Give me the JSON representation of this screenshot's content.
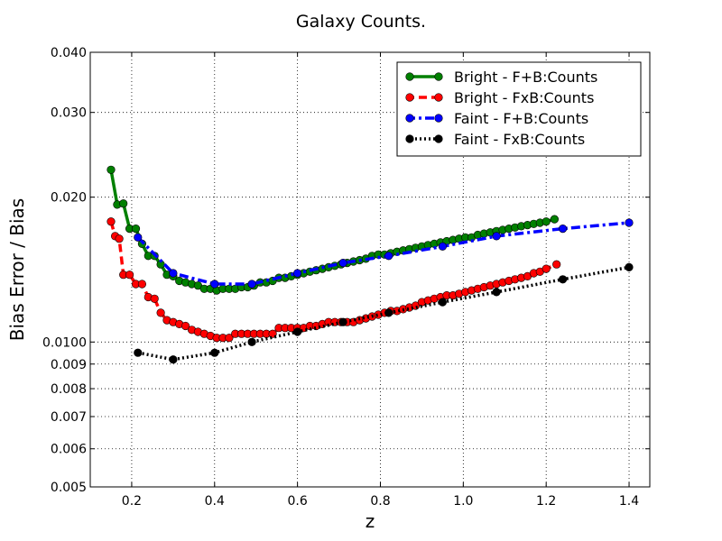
{
  "chart_data": {
    "type": "line",
    "title": "Galaxy Counts.",
    "xlabel": "z",
    "ylabel": "Bias Error / Bias",
    "xlim": [
      0.1,
      1.45
    ],
    "ylim": [
      0.005,
      0.04
    ],
    "yscale": "log",
    "grid": true,
    "legend_position": "top-right",
    "x_ticks": [
      0.2,
      0.4,
      0.6,
      0.8,
      1.0,
      1.2,
      1.4
    ],
    "x_tick_labels": [
      "0.2",
      "0.4",
      "0.6",
      "0.8",
      "1.0",
      "1.2",
      "1.4"
    ],
    "y_ticks": [
      0.005,
      0.006,
      0.007,
      0.008,
      0.009,
      0.01,
      0.02,
      0.03,
      0.04
    ],
    "y_tick_labels": [
      "0.005",
      "0.006",
      "0.007",
      "0.008",
      "0.009",
      "0.0100",
      "0.020",
      "0.030",
      "0.040"
    ],
    "series": [
      {
        "name": "Bright - F+B:Counts",
        "color": "#008000",
        "line_style": "solid",
        "x": [
          0.15,
          0.165,
          0.18,
          0.195,
          0.21,
          0.225,
          0.24,
          0.255,
          0.27,
          0.285,
          0.3,
          0.315,
          0.33,
          0.345,
          0.36,
          0.375,
          0.39,
          0.405,
          0.42,
          0.435,
          0.45,
          0.465,
          0.48,
          0.495,
          0.51,
          0.525,
          0.54,
          0.555,
          0.57,
          0.585,
          0.6,
          0.615,
          0.63,
          0.645,
          0.66,
          0.675,
          0.69,
          0.705,
          0.72,
          0.735,
          0.75,
          0.765,
          0.78,
          0.795,
          0.81,
          0.825,
          0.84,
          0.855,
          0.87,
          0.885,
          0.9,
          0.915,
          0.93,
          0.945,
          0.96,
          0.975,
          0.99,
          1.005,
          1.02,
          1.035,
          1.05,
          1.065,
          1.08,
          1.095,
          1.11,
          1.125,
          1.14,
          1.155,
          1.17,
          1.185,
          1.2,
          1.22
        ],
        "values": [
          0.0228,
          0.0193,
          0.0194,
          0.0172,
          0.0172,
          0.016,
          0.0151,
          0.0151,
          0.0145,
          0.0138,
          0.0137,
          0.0134,
          0.0133,
          0.0132,
          0.0131,
          0.0129,
          0.0129,
          0.0128,
          0.0129,
          0.0129,
          0.0129,
          0.013,
          0.013,
          0.0131,
          0.0133,
          0.0133,
          0.0134,
          0.0136,
          0.0136,
          0.0137,
          0.0138,
          0.0139,
          0.014,
          0.0141,
          0.0142,
          0.0143,
          0.0144,
          0.0145,
          0.0146,
          0.0147,
          0.0148,
          0.0149,
          0.0151,
          0.0152,
          0.0152,
          0.0153,
          0.0154,
          0.0155,
          0.0156,
          0.0157,
          0.0158,
          0.0159,
          0.016,
          0.0161,
          0.0162,
          0.0163,
          0.0164,
          0.0165,
          0.0165,
          0.0167,
          0.0168,
          0.0169,
          0.017,
          0.0171,
          0.0172,
          0.0173,
          0.0174,
          0.0175,
          0.0176,
          0.0177,
          0.0178,
          0.018
        ]
      },
      {
        "name": "Bright - FxB:Counts",
        "color": "#ff0000",
        "line_style": "dashed",
        "x": [
          0.15,
          0.16,
          0.17,
          0.18,
          0.195,
          0.21,
          0.225,
          0.24,
          0.255,
          0.27,
          0.285,
          0.3,
          0.315,
          0.33,
          0.345,
          0.36,
          0.375,
          0.39,
          0.405,
          0.42,
          0.435,
          0.45,
          0.465,
          0.48,
          0.495,
          0.51,
          0.525,
          0.54,
          0.555,
          0.57,
          0.585,
          0.6,
          0.615,
          0.63,
          0.645,
          0.66,
          0.675,
          0.69,
          0.705,
          0.72,
          0.735,
          0.75,
          0.765,
          0.78,
          0.795,
          0.81,
          0.825,
          0.84,
          0.855,
          0.87,
          0.885,
          0.9,
          0.915,
          0.93,
          0.945,
          0.96,
          0.975,
          0.99,
          1.005,
          1.02,
          1.035,
          1.05,
          1.065,
          1.08,
          1.095,
          1.11,
          1.125,
          1.14,
          1.155,
          1.17,
          1.185,
          1.2,
          1.225
        ],
        "values": [
          0.0178,
          0.0166,
          0.0164,
          0.0138,
          0.0138,
          0.0132,
          0.0132,
          0.0124,
          0.0123,
          0.0115,
          0.0111,
          0.011,
          0.0109,
          0.0108,
          0.0106,
          0.0105,
          0.0104,
          0.0103,
          0.0102,
          0.0102,
          0.0102,
          0.0104,
          0.0104,
          0.0104,
          0.0104,
          0.0104,
          0.0104,
          0.0104,
          0.0107,
          0.0107,
          0.0107,
          0.0107,
          0.0107,
          0.0108,
          0.0108,
          0.0109,
          0.011,
          0.011,
          0.011,
          0.011,
          0.011,
          0.0111,
          0.0112,
          0.0113,
          0.0114,
          0.0115,
          0.0116,
          0.0116,
          0.0117,
          0.0118,
          0.0119,
          0.0121,
          0.0122,
          0.0123,
          0.0124,
          0.0125,
          0.0125,
          0.0126,
          0.0127,
          0.0128,
          0.0129,
          0.013,
          0.0131,
          0.0132,
          0.0133,
          0.0134,
          0.0135,
          0.0136,
          0.0137,
          0.0139,
          0.014,
          0.0142,
          0.0145
        ]
      },
      {
        "name": "Faint - F+B:Counts",
        "color": "#0000ff",
        "line_style": "dashdot",
        "x": [
          0.215,
          0.3,
          0.4,
          0.49,
          0.6,
          0.71,
          0.82,
          0.95,
          1.08,
          1.24,
          1.4
        ],
        "values": [
          0.0165,
          0.0139,
          0.0132,
          0.0132,
          0.0139,
          0.0146,
          0.0151,
          0.0158,
          0.0166,
          0.0172,
          0.0177
        ]
      },
      {
        "name": "Faint - FxB:Counts",
        "color": "#000000",
        "line_style": "dotted",
        "x": [
          0.215,
          0.3,
          0.4,
          0.49,
          0.6,
          0.71,
          0.82,
          0.95,
          1.08,
          1.24,
          1.4
        ],
        "values": [
          0.0095,
          0.0092,
          0.0095,
          0.01,
          0.0105,
          0.011,
          0.0115,
          0.0121,
          0.0127,
          0.0135,
          0.0143
        ]
      }
    ]
  }
}
